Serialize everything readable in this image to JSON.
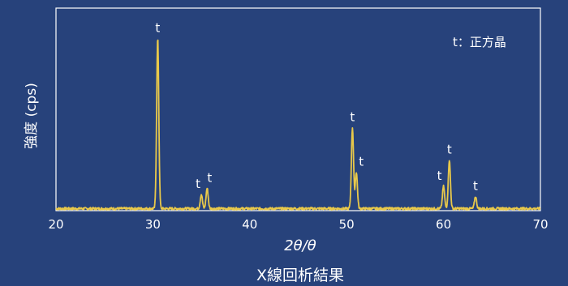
{
  "chart_data": {
    "type": "line",
    "title": "X線回析結果",
    "xlabel": "2θ/θ",
    "ylabel": "強度 (cps)",
    "legend": "t：正方晶",
    "legend_position": "top-right",
    "grid": false,
    "xlim": [
      20,
      70
    ],
    "ylim": [
      0,
      100
    ],
    "x_ticks": [
      "20",
      "30",
      "40",
      "50",
      "60",
      "70"
    ],
    "colors": {
      "background": "#27427b",
      "frame": "#ffffff",
      "line": "#e8c84a"
    },
    "baseline": 1,
    "peaks": [
      {
        "x": 30.5,
        "y": 85,
        "label": "t"
      },
      {
        "x": 35.0,
        "y": 8,
        "label": "t"
      },
      {
        "x": 35.6,
        "y": 11,
        "label": "t"
      },
      {
        "x": 50.6,
        "y": 41,
        "label": "t"
      },
      {
        "x": 51.0,
        "y": 19,
        "label": "t"
      },
      {
        "x": 60.0,
        "y": 12,
        "label": "t"
      },
      {
        "x": 60.6,
        "y": 25,
        "label": "t"
      },
      {
        "x": 63.3,
        "y": 7,
        "label": "t"
      }
    ]
  }
}
